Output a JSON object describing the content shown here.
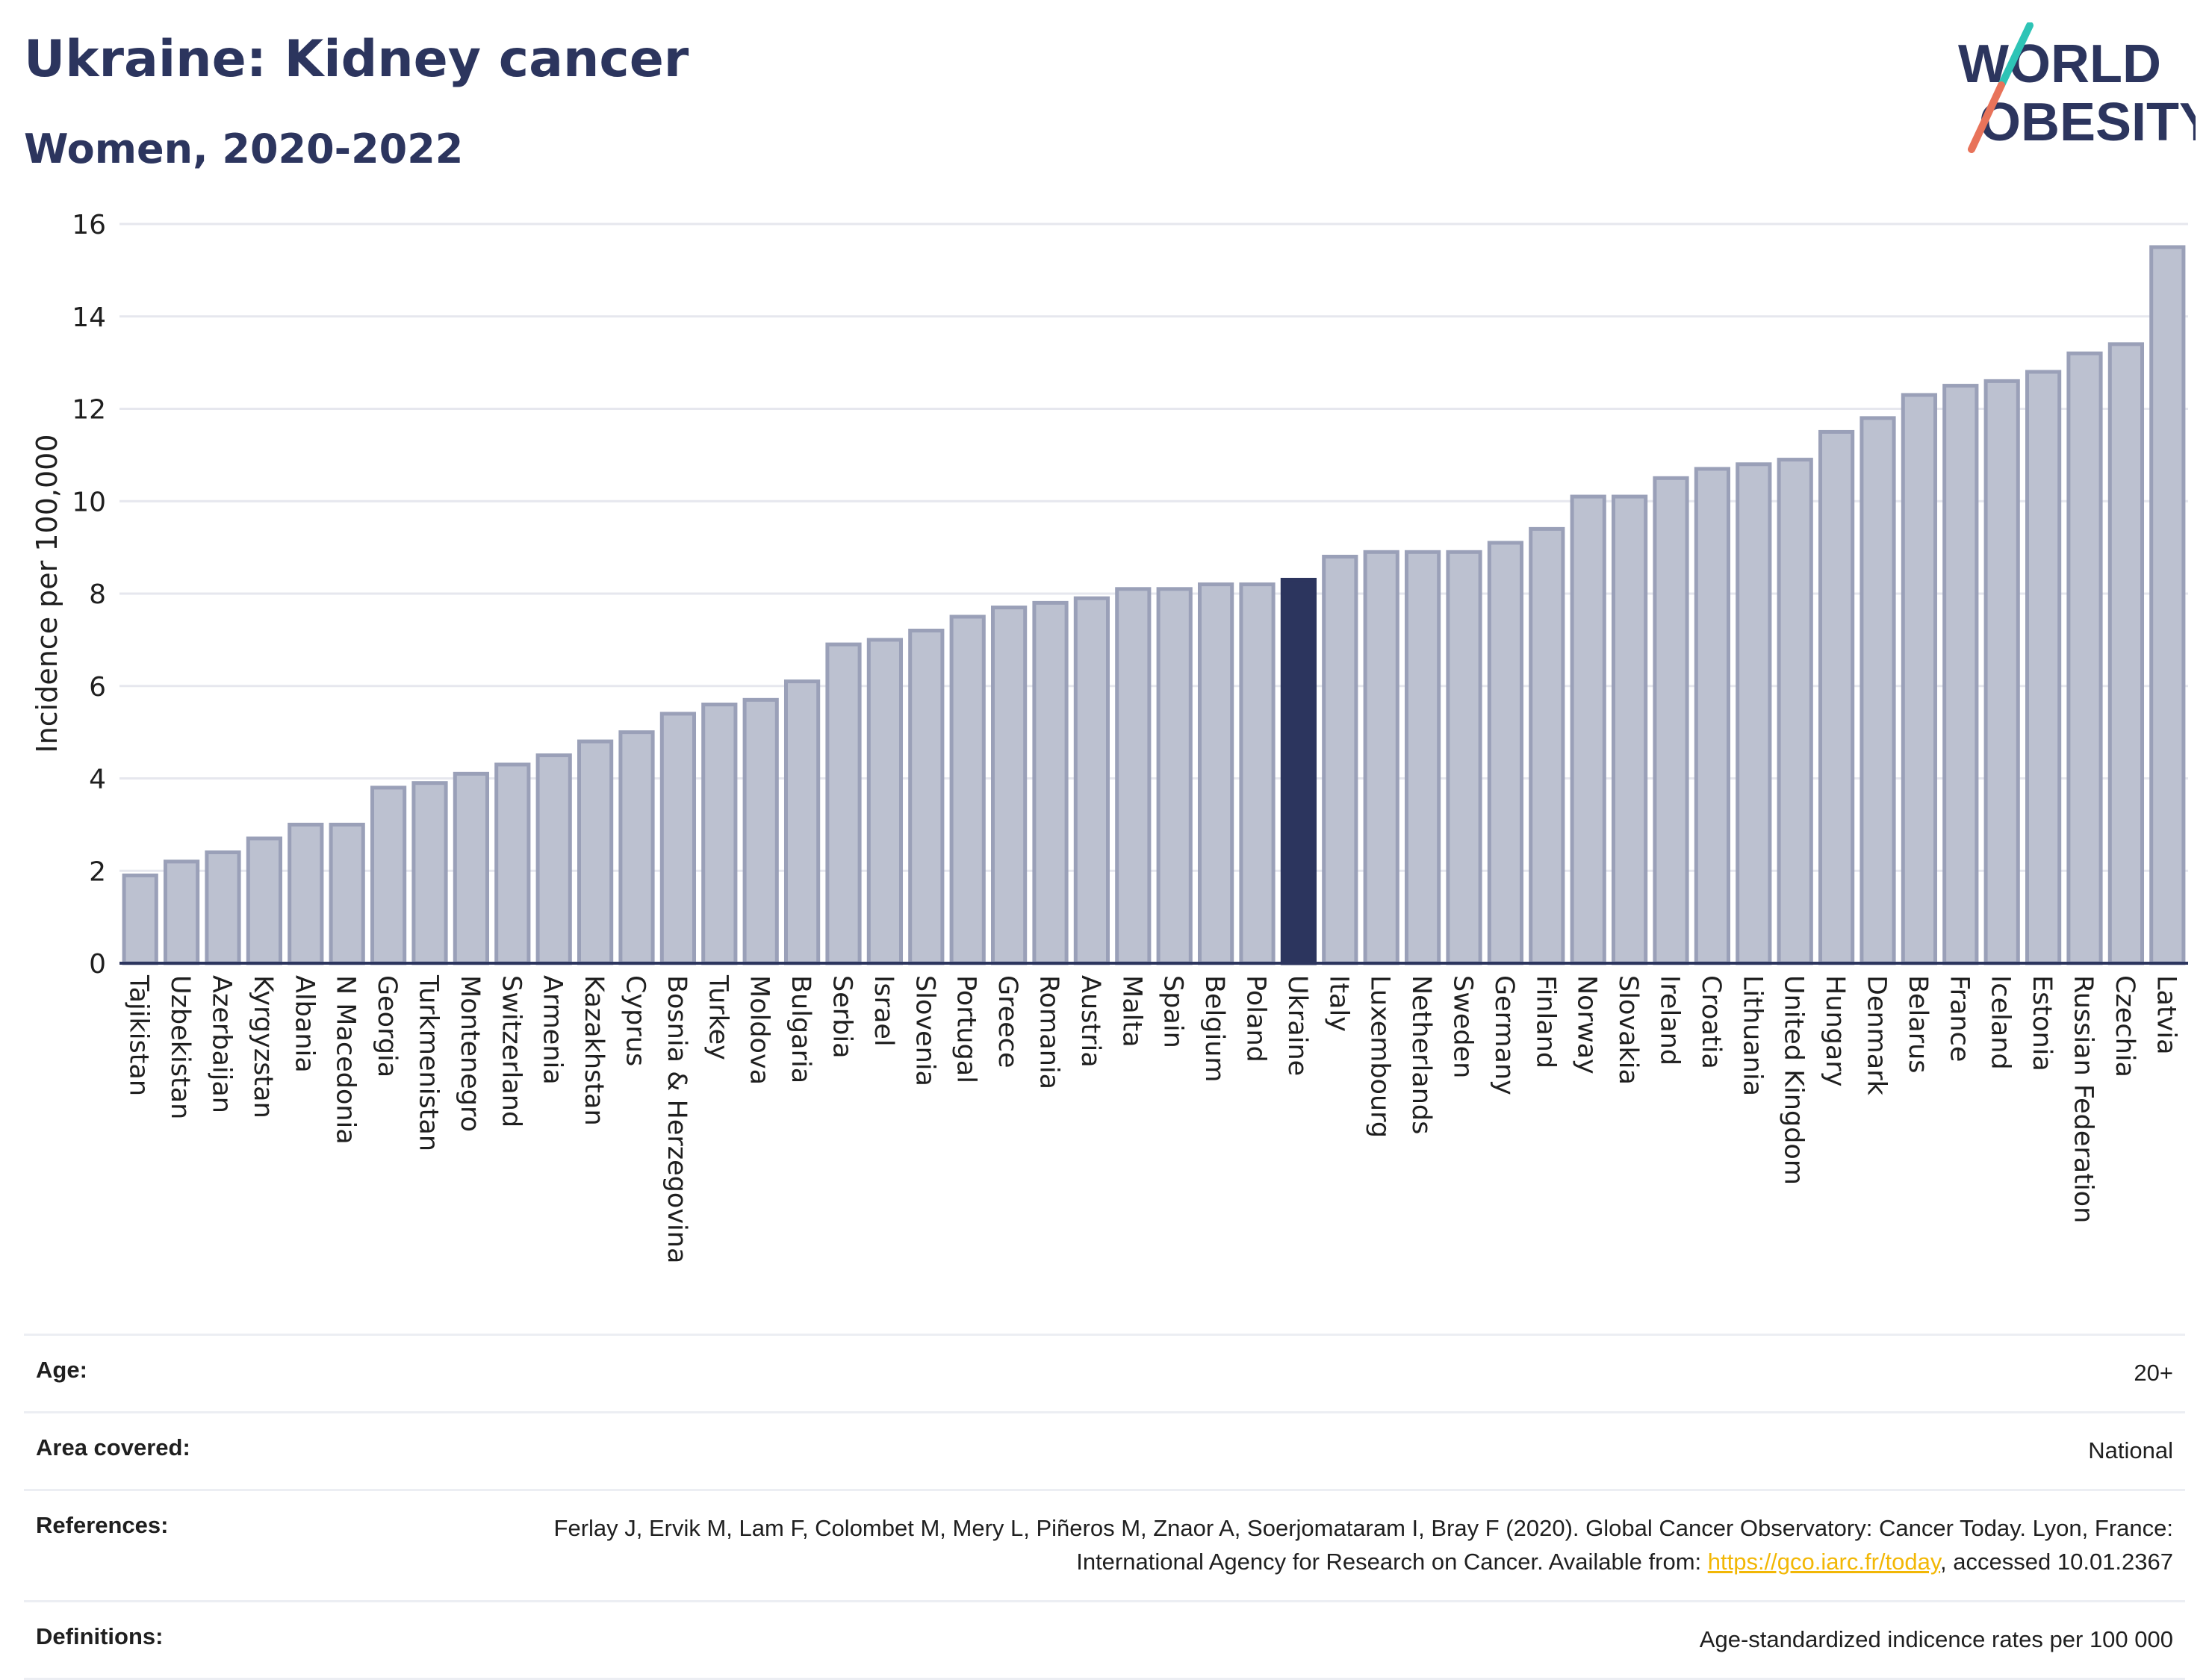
{
  "header": {
    "title": "Ukraine: Kidney cancer",
    "subtitle": "Women, 2020-2022"
  },
  "logo": {
    "line1": "WORLD",
    "line2": "OBESITY",
    "text_color": "#2c355e",
    "slash_colors": [
      "#2ec4b6",
      "#e8735a"
    ]
  },
  "colors": {
    "bar_default": "#bcc1d0",
    "bar_stroke": "#9aa0b8",
    "bar_highlight": "#2c355e",
    "grid": "#e6e7ee",
    "axis": "#2c355e"
  },
  "chart_data": {
    "type": "bar",
    "title": "Ukraine: Kidney cancer",
    "subtitle": "Women, 2020-2022",
    "xlabel": "",
    "ylabel": "Incidence per 100,000",
    "ylim": [
      0,
      16
    ],
    "yticks": [
      0,
      2,
      4,
      6,
      8,
      10,
      12,
      14,
      16
    ],
    "grid": true,
    "highlight": "Ukraine",
    "categories": [
      "Tajikistan",
      "Uzbekistan",
      "Azerbaijan",
      "Kyrgyzstan",
      "Albania",
      "N Macedonia",
      "Georgia",
      "Turkmenistan",
      "Montenegro",
      "Switzerland",
      "Armenia",
      "Kazakhstan",
      "Cyprus",
      "Bosnia & Herzegovina",
      "Turkey",
      "Moldova",
      "Bulgaria",
      "Serbia",
      "Israel",
      "Slovenia",
      "Portugal",
      "Greece",
      "Romania",
      "Austria",
      "Malta",
      "Spain",
      "Belgium",
      "Poland",
      "Ukraine",
      "Italy",
      "Luxembourg",
      "Netherlands",
      "Sweden",
      "Germany",
      "Finland",
      "Norway",
      "Slovakia",
      "Ireland",
      "Croatia",
      "Lithuania",
      "United Kingdom",
      "Hungary",
      "Denmark",
      "Belarus",
      "France",
      "Iceland",
      "Estonia",
      "Russian Federation",
      "Czechia",
      "Latvia"
    ],
    "values": [
      1.9,
      2.2,
      2.4,
      2.7,
      3.0,
      3.0,
      3.8,
      3.9,
      4.1,
      4.3,
      4.5,
      4.8,
      5.0,
      5.4,
      5.6,
      5.7,
      6.1,
      6.9,
      7.0,
      7.2,
      7.5,
      7.7,
      7.8,
      7.9,
      8.1,
      8.1,
      8.2,
      8.2,
      8.3,
      8.8,
      8.9,
      8.9,
      8.9,
      9.1,
      9.4,
      10.1,
      10.1,
      10.5,
      10.7,
      10.8,
      10.9,
      11.5,
      11.8,
      12.3,
      12.5,
      12.6,
      12.8,
      13.2,
      13.4,
      15.5
    ]
  },
  "info": {
    "age_label": "Age:",
    "age_value": "20+",
    "area_label": "Area covered:",
    "area_value": "National",
    "references_label": "References:",
    "references_text_1": "Ferlay J, Ervik M, Lam F, Colombet M, Mery L, Piñeros M, Znaor A, Soerjomataram I, Bray F (2020). Global Cancer Observatory: Cancer Today. Lyon, France: International Agency for Research on Cancer. Available from: ",
    "references_link": "https://gco.iarc.fr/today",
    "references_text_2": ", accessed 10.01.2367",
    "definitions_label": "Definitions:",
    "definitions_value": "Age-standardized indicence rates per 100 000"
  }
}
